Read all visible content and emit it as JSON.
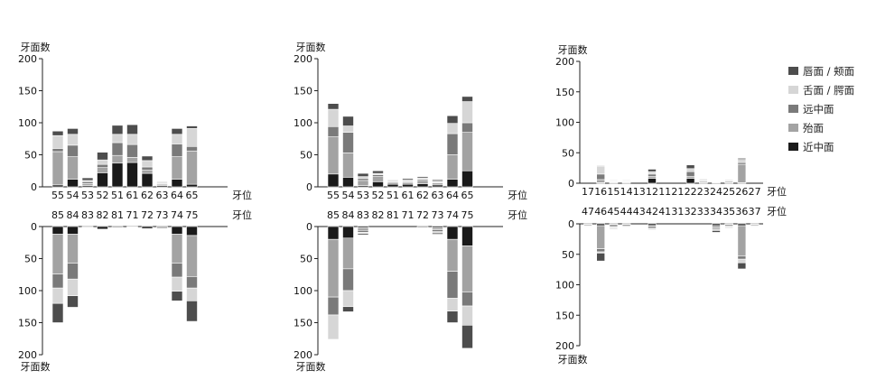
{
  "colors": {
    "lip_buccal": "#4d4d4d",
    "lingual_palatal": "#d6d6d6",
    "distal": "#7a7a7a",
    "occlusal": "#a3a3a3",
    "mesial": "#1a1a1a"
  },
  "legend": [
    {
      "label": "唇面 / 颊面",
      "color_key": "lip_buccal"
    },
    {
      "label": "舌面 / 腭面",
      "color_key": "lingual_palatal"
    },
    {
      "label": "远中面",
      "color_key": "distal"
    },
    {
      "label": "殆面",
      "color_key": "occlusal"
    },
    {
      "label": "近中面",
      "color_key": "mesial"
    }
  ],
  "chart_data": [
    {
      "type": "bar",
      "stacked": true,
      "panel": "deciduous-1-upper",
      "ylabel": "牙面数",
      "xlabel": "牙位",
      "ylim": [
        0,
        200
      ],
      "yticks": [
        0,
        50,
        100,
        150,
        200
      ],
      "categories": [
        "55",
        "54",
        "53",
        "52",
        "51",
        "61",
        "62",
        "63",
        "64",
        "65"
      ],
      "series": [
        {
          "name": "近中面",
          "values": [
            3,
            12,
            2,
            22,
            37,
            38,
            21,
            2,
            12,
            4
          ]
        },
        {
          "name": "殆面",
          "values": [
            52,
            35,
            3,
            8,
            12,
            8,
            5,
            2,
            35,
            52
          ]
        },
        {
          "name": "远中面",
          "values": [
            5,
            18,
            3,
            5,
            20,
            20,
            5,
            1,
            20,
            7
          ]
        },
        {
          "name": "舌面 / 腭面",
          "values": [
            20,
            17,
            2,
            7,
            13,
            16,
            10,
            2,
            15,
            28
          ]
        },
        {
          "name": "唇面 / 颊面",
          "values": [
            7,
            9,
            4,
            12,
            14,
            15,
            7,
            1,
            9,
            4
          ]
        }
      ]
    },
    {
      "type": "bar",
      "stacked": true,
      "panel": "deciduous-1-lower",
      "ylabel": "牙面数",
      "xlabel": "牙位",
      "ylim": [
        200,
        0
      ],
      "yticks": [
        0,
        50,
        100,
        150,
        200
      ],
      "categories": [
        "85",
        "84",
        "83",
        "82",
        "81",
        "71",
        "72",
        "73",
        "74",
        "75"
      ],
      "series": [
        {
          "name": "近中面",
          "values": [
            12,
            12,
            1,
            4,
            0,
            0,
            3,
            0,
            12,
            14
          ]
        },
        {
          "name": "殆面",
          "values": [
            62,
            45,
            0,
            0,
            2,
            0,
            0,
            3,
            45,
            64
          ]
        },
        {
          "name": "远中面",
          "values": [
            22,
            25,
            0,
            0,
            0,
            0,
            0,
            0,
            22,
            18
          ]
        },
        {
          "name": "舌面 / 腭面",
          "values": [
            24,
            26,
            1,
            0,
            1,
            1,
            0,
            1,
            22,
            20
          ]
        },
        {
          "name": "唇面 / 颊面",
          "values": [
            30,
            18,
            0,
            0,
            0,
            0,
            0,
            0,
            15,
            32
          ]
        }
      ]
    },
    {
      "type": "bar",
      "stacked": true,
      "panel": "deciduous-2-upper",
      "ylabel": "牙面数",
      "xlabel": "牙位",
      "ylim": [
        0,
        200
      ],
      "yticks": [
        0,
        50,
        100,
        150,
        200
      ],
      "categories": [
        "55",
        "54",
        "53",
        "52",
        "51",
        "61",
        "62",
        "63",
        "64",
        "65"
      ],
      "series": [
        {
          "name": "近中面",
          "values": [
            20,
            15,
            2,
            8,
            4,
            4,
            5,
            3,
            12,
            25
          ]
        },
        {
          "name": "殆面",
          "values": [
            58,
            38,
            8,
            8,
            3,
            3,
            5,
            3,
            38,
            60
          ]
        },
        {
          "name": "远中面",
          "values": [
            16,
            32,
            3,
            3,
            1,
            1,
            2,
            1,
            33,
            15
          ]
        },
        {
          "name": "舌面 / 腭面",
          "values": [
            27,
            10,
            3,
            2,
            2,
            3,
            2,
            2,
            16,
            33
          ]
        },
        {
          "name": "唇面 / 颊面",
          "values": [
            9,
            15,
            5,
            4,
            1,
            2,
            2,
            2,
            12,
            8
          ]
        }
      ]
    },
    {
      "type": "bar",
      "stacked": true,
      "panel": "deciduous-2-lower",
      "ylabel": "牙面数",
      "xlabel": "牙位",
      "ylim": [
        200,
        0
      ],
      "yticks": [
        0,
        50,
        100,
        150,
        200
      ],
      "categories": [
        "85",
        "84",
        "83",
        "82",
        "81",
        "71",
        "72",
        "73",
        "74",
        "75"
      ],
      "series": [
        {
          "name": "近中面",
          "values": [
            20,
            18,
            2,
            0,
            0,
            0,
            0,
            2,
            20,
            30
          ]
        },
        {
          "name": "殆面",
          "values": [
            90,
            48,
            4,
            0,
            0,
            0,
            2,
            3,
            50,
            72
          ]
        },
        {
          "name": "远中面",
          "values": [
            28,
            34,
            3,
            0,
            0,
            0,
            0,
            3,
            42,
            22
          ]
        },
        {
          "name": "舌面 / 腭面",
          "values": [
            38,
            25,
            2,
            0,
            0,
            0,
            1,
            2,
            20,
            30
          ]
        },
        {
          "name": "唇面 / 颊面",
          "values": [
            0,
            8,
            2,
            0,
            0,
            0,
            0,
            2,
            18,
            36
          ]
        }
      ]
    },
    {
      "type": "bar",
      "stacked": true,
      "panel": "permanent-upper",
      "ylabel": "牙面数",
      "xlabel": "牙位",
      "ylim": [
        0,
        200
      ],
      "yticks": [
        0,
        50,
        100,
        150,
        200
      ],
      "categories": [
        "17",
        "16",
        "15",
        "14",
        "13",
        "12",
        "11",
        "21",
        "22",
        "23",
        "24",
        "25",
        "26",
        "27"
      ],
      "series": [
        {
          "name": "近中面",
          "values": [
            0,
            1,
            1,
            1,
            0,
            8,
            0,
            0,
            8,
            1,
            0,
            1,
            1,
            0
          ]
        },
        {
          "name": "殆面",
          "values": [
            0,
            5,
            1,
            1,
            0,
            3,
            0,
            0,
            3,
            2,
            1,
            2,
            30,
            0
          ]
        },
        {
          "name": "远中面",
          "values": [
            0,
            9,
            1,
            1,
            0,
            4,
            0,
            0,
            8,
            1,
            0,
            1,
            3,
            0
          ]
        },
        {
          "name": "舌面 / 腭面",
          "values": [
            0,
            13,
            1,
            1,
            0,
            4,
            0,
            0,
            5,
            2,
            0,
            1,
            5,
            0
          ]
        },
        {
          "name": "唇面 / 颊面",
          "values": [
            0,
            1,
            1,
            1,
            0,
            4,
            0,
            0,
            6,
            1,
            0,
            1,
            2,
            0
          ]
        }
      ]
    },
    {
      "type": "bar",
      "stacked": true,
      "panel": "permanent-lower",
      "ylabel": "牙面数",
      "xlabel": "牙位",
      "ylim": [
        200,
        0
      ],
      "yticks": [
        0,
        50,
        100,
        150,
        200
      ],
      "categories": [
        "47",
        "46",
        "45",
        "44",
        "43",
        "42",
        "41",
        "31",
        "32",
        "33",
        "34",
        "35",
        "36",
        "37"
      ],
      "series": [
        {
          "name": "近中面",
          "values": [
            1,
            3,
            1,
            1,
            0,
            3,
            0,
            0,
            0,
            0,
            3,
            1,
            3,
            1
          ]
        },
        {
          "name": "殆面",
          "values": [
            2,
            38,
            4,
            3,
            0,
            1,
            0,
            0,
            0,
            0,
            4,
            3,
            50,
            2
          ]
        },
        {
          "name": "远中面",
          "values": [
            1,
            5,
            1,
            1,
            0,
            3,
            0,
            0,
            0,
            0,
            2,
            1,
            5,
            1
          ]
        },
        {
          "name": "舌面 / 腭面",
          "values": [
            1,
            2,
            2,
            1,
            0,
            2,
            0,
            0,
            0,
            0,
            2,
            2,
            6,
            1
          ]
        },
        {
          "name": "唇面 / 颊面",
          "values": [
            0,
            13,
            1,
            0,
            0,
            1,
            0,
            0,
            0,
            0,
            3,
            0,
            10,
            0
          ]
        }
      ]
    }
  ]
}
